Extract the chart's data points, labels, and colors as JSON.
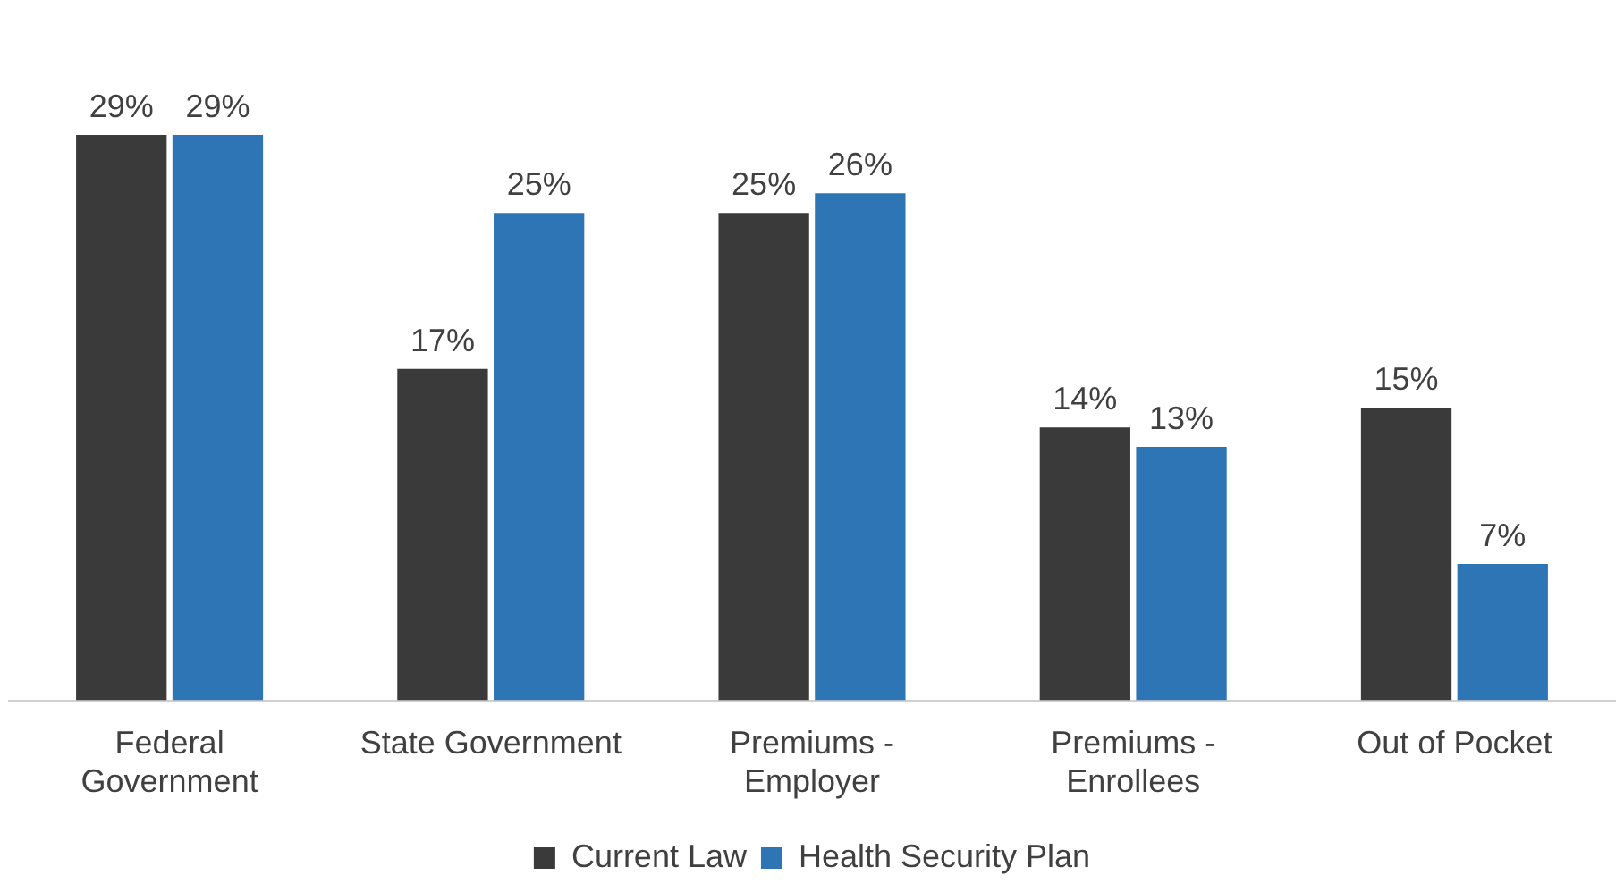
{
  "chart_data": {
    "type": "bar",
    "categories": [
      "Federal\nGovernment",
      "State Government",
      "Premiums -\nEmployer",
      "Premiums -\nEnrollees",
      "Out of Pocket"
    ],
    "series": [
      {
        "name": "Current Law",
        "color": "#3a3a3a",
        "values": [
          29,
          17,
          25,
          14,
          15
        ],
        "value_labels": [
          "29%",
          "17%",
          "25%",
          "14%",
          "15%"
        ]
      },
      {
        "name": "Health Security Plan",
        "color": "#2e75b6",
        "values": [
          29,
          25,
          26,
          13,
          7
        ],
        "value_labels": [
          "29%",
          "25%",
          "26%",
          "13%",
          "7%"
        ]
      }
    ],
    "tick_labels": "x",
    "grid": false,
    "legend": "bottom"
  }
}
